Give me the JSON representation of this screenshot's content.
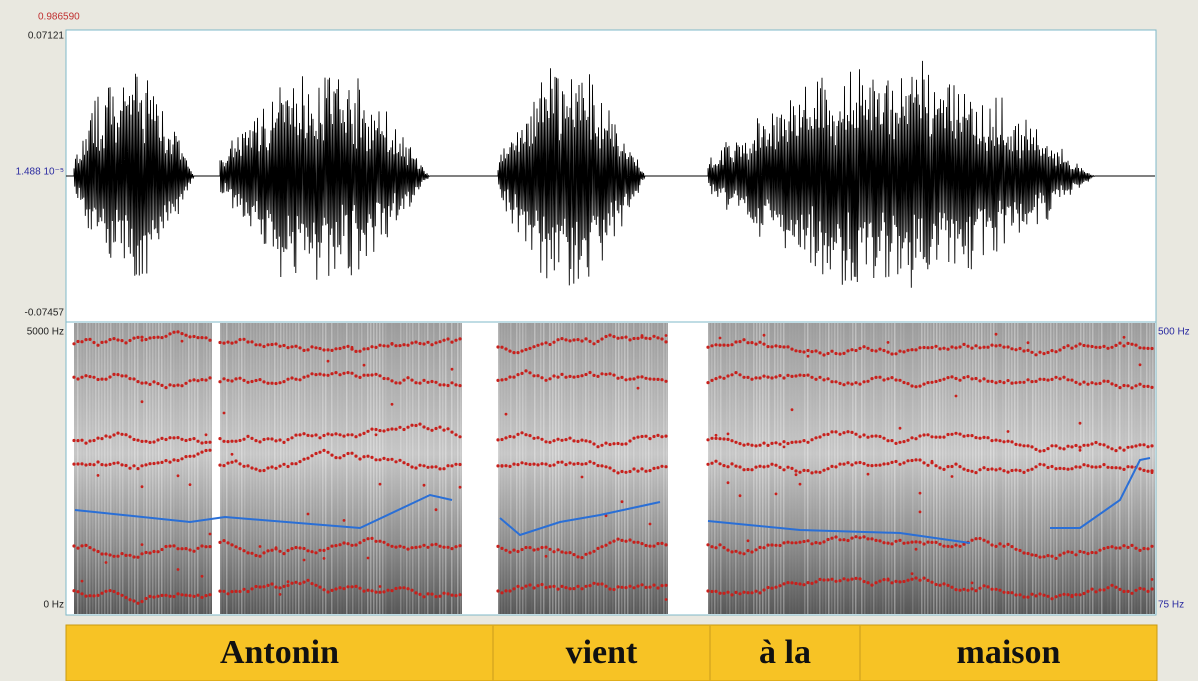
{
  "time_label": "0.986590",
  "waveform": {
    "max": "0.07121",
    "mid": "1.488 10⁻⁵",
    "min": "-0.07457"
  },
  "spectrogram": {
    "max": "5000 Hz",
    "min": "0 Hz"
  },
  "pitch": {
    "max": "500 Hz",
    "min": "75 Hz"
  },
  "tier": {
    "intervals": [
      "Antonin",
      "vient",
      "à la",
      "maison"
    ]
  }
}
